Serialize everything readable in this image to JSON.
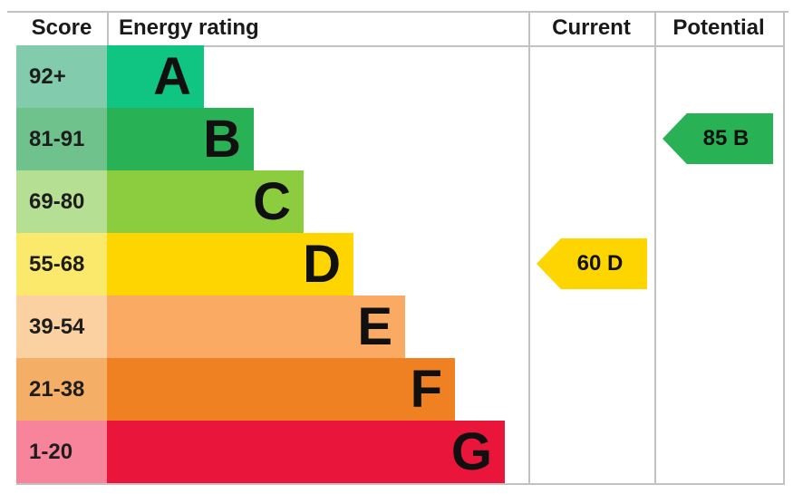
{
  "header": {
    "score": "Score",
    "energy_rating": "Energy rating",
    "current": "Current",
    "potential": "Potential"
  },
  "bands": [
    {
      "letter": "A",
      "score": "92+",
      "color": "#10c481",
      "tint": "#82cbac"
    },
    {
      "letter": "B",
      "score": "81-91",
      "color": "#29b255",
      "tint": "#6fc28b"
    },
    {
      "letter": "C",
      "score": "69-80",
      "color": "#8ccc3f",
      "tint": "#b5e094"
    },
    {
      "letter": "D",
      "score": "55-68",
      "color": "#ffd500",
      "tint": "#fbe96c"
    },
    {
      "letter": "E",
      "score": "39-54",
      "color": "#fbaa63",
      "tint": "#fcd1a2"
    },
    {
      "letter": "F",
      "score": "21-38",
      "color": "#f08123",
      "tint": "#f5ae66"
    },
    {
      "letter": "G",
      "score": "1-20",
      "color": "#e9153b",
      "tint": "#f8849c"
    }
  ],
  "current": {
    "label": "60 D",
    "value": 60,
    "band": "D",
    "color": "#ffd500"
  },
  "potential": {
    "label": "85 B",
    "value": 85,
    "band": "B",
    "color": "#29b255"
  },
  "chart_data": {
    "type": "bar",
    "orientation": "horizontal",
    "title": "Energy rating (EPC band chart)",
    "categories": [
      "A",
      "B",
      "C",
      "D",
      "E",
      "F",
      "G"
    ],
    "score_ranges": [
      "92+",
      "81-91",
      "69-80",
      "55-68",
      "39-54",
      "21-38",
      "1-20"
    ],
    "score_bounds": [
      [
        92,
        100
      ],
      [
        81,
        91
      ],
      [
        69,
        80
      ],
      [
        55,
        68
      ],
      [
        39,
        54
      ],
      [
        21,
        38
      ],
      [
        1,
        20
      ]
    ],
    "values_relative_bar_length": [
      1,
      2,
      3,
      4,
      5,
      6,
      7
    ],
    "colors": [
      "#10c481",
      "#29b255",
      "#8ccc3f",
      "#ffd500",
      "#fbaa63",
      "#f08123",
      "#e9153b"
    ],
    "column_headers": [
      "Score",
      "Energy rating",
      "Current",
      "Potential"
    ],
    "markers": [
      {
        "column": "Current",
        "value": 60,
        "band": "D",
        "label": "60 D",
        "color": "#ffd500"
      },
      {
        "column": "Potential",
        "value": 85,
        "band": "B",
        "label": "85 B",
        "color": "#29b255"
      }
    ],
    "legend": "none",
    "grid": "column dividers only"
  }
}
